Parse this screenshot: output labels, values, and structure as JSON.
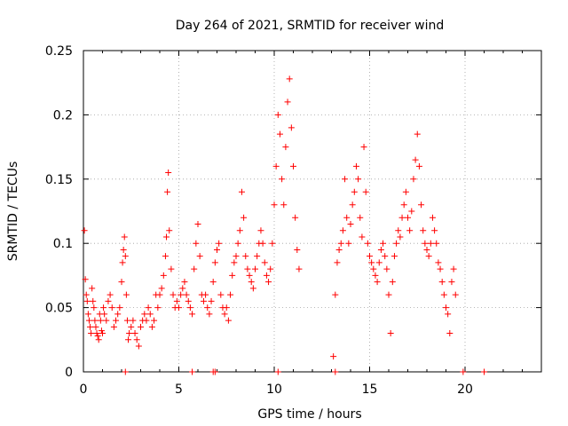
{
  "chart_data": {
    "type": "scatter",
    "title": "Day 264 of 2021, SRMTID for receiver wind",
    "xlabel": "GPS time / hours",
    "ylabel": "SRMTID / TECUs",
    "xlim": [
      0,
      24
    ],
    "ylim": [
      0,
      0.25
    ],
    "xticks": [
      0,
      5,
      10,
      15,
      20
    ],
    "xtick_labels": [
      "0",
      "5",
      "10",
      "15",
      "20"
    ],
    "yticks": [
      0,
      0.05,
      0.1,
      0.15,
      0.2,
      0.25
    ],
    "ytick_labels": [
      "0",
      "0.05",
      "0.1",
      "0.15",
      "0.2",
      "0.25"
    ],
    "grid": true,
    "marker": "plus",
    "colors": {
      "points": "#ff0000",
      "axes": "#000000",
      "grid": "#a0a0a0"
    },
    "series": [
      {
        "name": "SRMTID",
        "points": [
          [
            0.05,
            0.11
          ],
          [
            0.1,
            0.072
          ],
          [
            0.15,
            0.06
          ],
          [
            0.2,
            0.055
          ],
          [
            0.25,
            0.045
          ],
          [
            0.3,
            0.04
          ],
          [
            0.35,
            0.035
          ],
          [
            0.4,
            0.03
          ],
          [
            0.45,
            0.065
          ],
          [
            0.5,
            0.055
          ],
          [
            0.55,
            0.05
          ],
          [
            0.6,
            0.04
          ],
          [
            0.65,
            0.035
          ],
          [
            0.7,
            0.03
          ],
          [
            0.75,
            0.028
          ],
          [
            0.8,
            0.025
          ],
          [
            0.85,
            0.045
          ],
          [
            0.9,
            0.04
          ],
          [
            0.95,
            0.032
          ],
          [
            1.0,
            0.03
          ],
          [
            1.05,
            0.05
          ],
          [
            1.1,
            0.045
          ],
          [
            1.2,
            0.04
          ],
          [
            1.3,
            0.055
          ],
          [
            1.4,
            0.06
          ],
          [
            1.5,
            0.05
          ],
          [
            1.6,
            0.035
          ],
          [
            1.7,
            0.04
          ],
          [
            1.8,
            0.045
          ],
          [
            1.9,
            0.05
          ],
          [
            2.0,
            0.07
          ],
          [
            2.05,
            0.085
          ],
          [
            2.1,
            0.095
          ],
          [
            2.15,
            0.105
          ],
          [
            2.2,
            0.09
          ],
          [
            2.25,
            0.06
          ],
          [
            2.3,
            0.04
          ],
          [
            2.35,
            0.025
          ],
          [
            2.4,
            0.03
          ],
          [
            2.5,
            0.035
          ],
          [
            2.6,
            0.04
          ],
          [
            2.7,
            0.03
          ],
          [
            2.8,
            0.025
          ],
          [
            2.9,
            0.02
          ],
          [
            3.0,
            0.035
          ],
          [
            3.1,
            0.04
          ],
          [
            3.2,
            0.045
          ],
          [
            3.3,
            0.04
          ],
          [
            3.4,
            0.05
          ],
          [
            3.5,
            0.045
          ],
          [
            3.6,
            0.035
          ],
          [
            3.7,
            0.04
          ],
          [
            3.8,
            0.06
          ],
          [
            3.9,
            0.05
          ],
          [
            4.0,
            0.06
          ],
          [
            4.1,
            0.065
          ],
          [
            4.2,
            0.075
          ],
          [
            4.3,
            0.09
          ],
          [
            4.35,
            0.105
          ],
          [
            4.4,
            0.14
          ],
          [
            4.45,
            0.155
          ],
          [
            4.5,
            0.11
          ],
          [
            4.6,
            0.08
          ],
          [
            4.7,
            0.06
          ],
          [
            4.8,
            0.05
          ],
          [
            4.9,
            0.055
          ],
          [
            5.0,
            0.05
          ],
          [
            5.1,
            0.06
          ],
          [
            5.2,
            0.065
          ],
          [
            5.3,
            0.07
          ],
          [
            5.4,
            0.06
          ],
          [
            5.5,
            0.055
          ],
          [
            5.6,
            0.05
          ],
          [
            5.7,
            0.045
          ],
          [
            5.8,
            0.08
          ],
          [
            5.9,
            0.1
          ],
          [
            6.0,
            0.115
          ],
          [
            6.1,
            0.09
          ],
          [
            6.2,
            0.06
          ],
          [
            6.3,
            0.055
          ],
          [
            6.4,
            0.06
          ],
          [
            6.5,
            0.05
          ],
          [
            6.6,
            0.045
          ],
          [
            6.7,
            0.055
          ],
          [
            6.8,
            0.07
          ],
          [
            6.9,
            0.085
          ],
          [
            7.0,
            0.095
          ],
          [
            7.1,
            0.1
          ],
          [
            7.2,
            0.06
          ],
          [
            7.3,
            0.05
          ],
          [
            7.4,
            0.045
          ],
          [
            7.5,
            0.05
          ],
          [
            7.6,
            0.04
          ],
          [
            7.7,
            0.06
          ],
          [
            7.8,
            0.075
          ],
          [
            7.9,
            0.085
          ],
          [
            8.0,
            0.09
          ],
          [
            8.1,
            0.1
          ],
          [
            8.2,
            0.11
          ],
          [
            8.3,
            0.14
          ],
          [
            8.4,
            0.12
          ],
          [
            8.5,
            0.09
          ],
          [
            8.6,
            0.08
          ],
          [
            8.7,
            0.075
          ],
          [
            8.8,
            0.07
          ],
          [
            8.9,
            0.065
          ],
          [
            9.0,
            0.08
          ],
          [
            9.1,
            0.09
          ],
          [
            9.2,
            0.1
          ],
          [
            9.3,
            0.11
          ],
          [
            9.4,
            0.1
          ],
          [
            9.5,
            0.085
          ],
          [
            9.6,
            0.075
          ],
          [
            9.7,
            0.07
          ],
          [
            9.8,
            0.08
          ],
          [
            9.9,
            0.1
          ],
          [
            10.0,
            0.13
          ],
          [
            10.1,
            0.16
          ],
          [
            10.2,
            0.2
          ],
          [
            10.3,
            0.185
          ],
          [
            10.4,
            0.15
          ],
          [
            10.5,
            0.13
          ],
          [
            10.6,
            0.175
          ],
          [
            10.7,
            0.21
          ],
          [
            10.8,
            0.228
          ],
          [
            10.9,
            0.19
          ],
          [
            11.0,
            0.16
          ],
          [
            11.1,
            0.12
          ],
          [
            11.2,
            0.095
          ],
          [
            11.3,
            0.08
          ],
          [
            13.1,
            0.012
          ],
          [
            13.2,
            0.06
          ],
          [
            13.3,
            0.085
          ],
          [
            13.4,
            0.095
          ],
          [
            13.5,
            0.1
          ],
          [
            13.6,
            0.11
          ],
          [
            13.7,
            0.15
          ],
          [
            13.8,
            0.12
          ],
          [
            13.9,
            0.1
          ],
          [
            14.0,
            0.115
          ],
          [
            14.1,
            0.13
          ],
          [
            14.2,
            0.14
          ],
          [
            14.3,
            0.16
          ],
          [
            14.4,
            0.15
          ],
          [
            14.5,
            0.12
          ],
          [
            14.6,
            0.105
          ],
          [
            14.7,
            0.175
          ],
          [
            14.8,
            0.14
          ],
          [
            14.9,
            0.1
          ],
          [
            15.0,
            0.09
          ],
          [
            15.1,
            0.085
          ],
          [
            15.2,
            0.08
          ],
          [
            15.3,
            0.075
          ],
          [
            15.4,
            0.07
          ],
          [
            15.5,
            0.085
          ],
          [
            15.6,
            0.095
          ],
          [
            15.7,
            0.1
          ],
          [
            15.8,
            0.09
          ],
          [
            15.9,
            0.08
          ],
          [
            16.0,
            0.06
          ],
          [
            16.1,
            0.03
          ],
          [
            16.2,
            0.07
          ],
          [
            16.3,
            0.09
          ],
          [
            16.4,
            0.1
          ],
          [
            16.5,
            0.11
          ],
          [
            16.6,
            0.105
          ],
          [
            16.7,
            0.12
          ],
          [
            16.8,
            0.13
          ],
          [
            16.9,
            0.14
          ],
          [
            17.0,
            0.12
          ],
          [
            17.1,
            0.11
          ],
          [
            17.2,
            0.125
          ],
          [
            17.3,
            0.15
          ],
          [
            17.4,
            0.165
          ],
          [
            17.5,
            0.185
          ],
          [
            17.6,
            0.16
          ],
          [
            17.7,
            0.13
          ],
          [
            17.8,
            0.11
          ],
          [
            17.9,
            0.1
          ],
          [
            18.0,
            0.095
          ],
          [
            18.1,
            0.09
          ],
          [
            18.2,
            0.1
          ],
          [
            18.3,
            0.12
          ],
          [
            18.4,
            0.11
          ],
          [
            18.5,
            0.1
          ],
          [
            18.6,
            0.085
          ],
          [
            18.7,
            0.08
          ],
          [
            18.8,
            0.07
          ],
          [
            18.9,
            0.06
          ],
          [
            19.0,
            0.05
          ],
          [
            19.1,
            0.045
          ],
          [
            19.2,
            0.03
          ],
          [
            19.3,
            0.07
          ],
          [
            19.4,
            0.08
          ],
          [
            19.5,
            0.06
          ],
          [
            2.2,
            0.0
          ],
          [
            5.7,
            0.0
          ],
          [
            6.8,
            0.0
          ],
          [
            6.9,
            0.0
          ],
          [
            10.2,
            0.0
          ],
          [
            13.2,
            0.0
          ],
          [
            21.0,
            0.0
          ],
          [
            19.9,
            0.0
          ]
        ]
      }
    ]
  }
}
